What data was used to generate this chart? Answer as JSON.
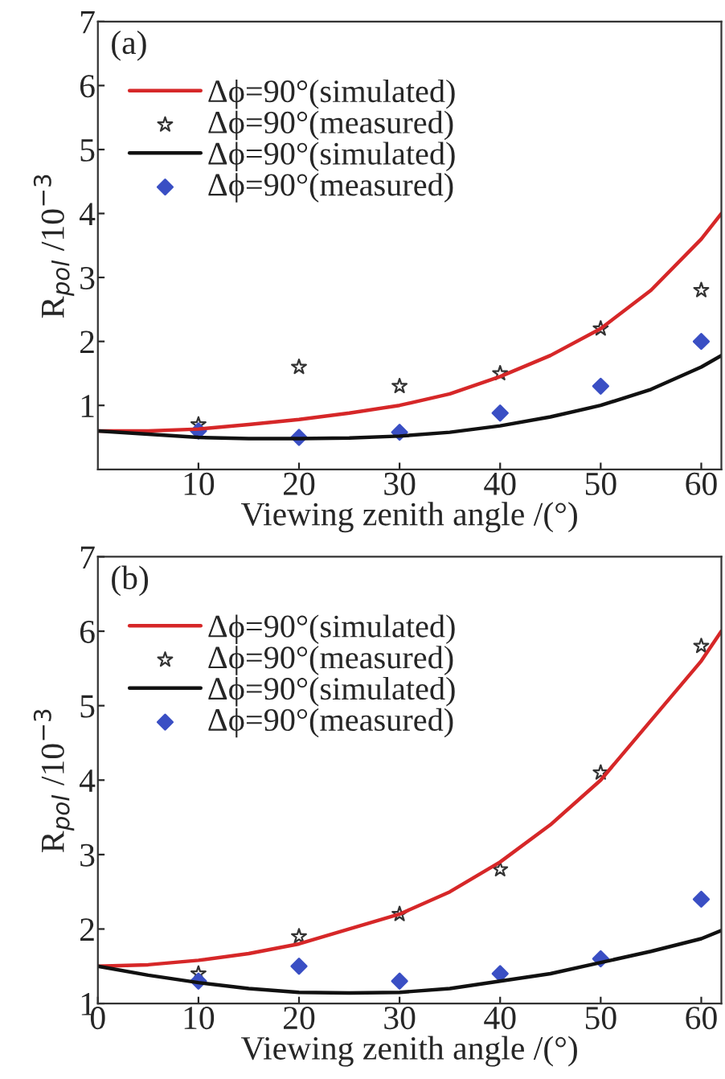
{
  "chart_data": [
    {
      "type": "line",
      "xlabel": "Viewing zenith angle /(°)",
      "ylabel": "R$_{pol}$ /10$^{−3}$",
      "annotations": [
        "(a)"
      ],
      "xlim": [
        0,
        62
      ],
      "ylim": [
        0,
        7
      ],
      "xticks": [
        10,
        20,
        30,
        40,
        50,
        60
      ],
      "yticks": [
        1,
        2,
        3,
        4,
        5,
        6,
        7
      ],
      "legend": "top left",
      "grid": false,
      "series": [
        {
          "name": "Δϕ=90°(simulated)",
          "color": "#d62728",
          "marker": "none",
          "x": [
            0,
            5,
            10,
            15,
            20,
            25,
            30,
            35,
            40,
            45,
            50,
            55,
            60,
            62
          ],
          "values": [
            0.6,
            0.6,
            0.63,
            0.7,
            0.78,
            0.88,
            1.0,
            1.18,
            1.45,
            1.78,
            2.2,
            2.8,
            3.6,
            4.0
          ]
        },
        {
          "name": "Δϕ=90°(measured)",
          "type": "scatter",
          "color": "#333333",
          "marker": "star",
          "x": [
            10,
            20,
            30,
            40,
            50,
            60
          ],
          "values": [
            0.7,
            1.6,
            1.3,
            1.5,
            2.2,
            2.8
          ]
        },
        {
          "name": "Δϕ=90°(simulated)",
          "color": "#111111",
          "marker": "none",
          "x": [
            0,
            5,
            10,
            15,
            20,
            25,
            30,
            35,
            40,
            45,
            50,
            55,
            60,
            62
          ],
          "values": [
            0.6,
            0.55,
            0.5,
            0.48,
            0.48,
            0.49,
            0.52,
            0.58,
            0.68,
            0.82,
            1.0,
            1.25,
            1.6,
            1.78
          ]
        },
        {
          "name": "Δϕ=90°(measured)",
          "type": "scatter",
          "color": "#3a4fc4",
          "marker": "diamond",
          "x": [
            10,
            20,
            30,
            40,
            50,
            60
          ],
          "values": [
            0.6,
            0.5,
            0.58,
            0.88,
            1.3,
            2.0
          ]
        }
      ]
    },
    {
      "type": "line",
      "xlabel": "Viewing zenith angle /(°)",
      "ylabel": "R$_{pol}$ /10$^{−3}$",
      "annotations": [
        "(b)"
      ],
      "xlim": [
        0,
        62
      ],
      "ylim": [
        1,
        7
      ],
      "xticks": [
        0,
        10,
        20,
        30,
        40,
        50,
        60
      ],
      "yticks": [
        1,
        2,
        3,
        4,
        5,
        6,
        7
      ],
      "legend": "top left",
      "grid": false,
      "series": [
        {
          "name": "Δϕ=90°(simulated)",
          "color": "#d62728",
          "marker": "none",
          "x": [
            0,
            5,
            10,
            15,
            20,
            25,
            30,
            35,
            40,
            45,
            50,
            55,
            60,
            62
          ],
          "values": [
            1.5,
            1.52,
            1.58,
            1.67,
            1.8,
            2.0,
            2.2,
            2.5,
            2.9,
            3.4,
            4.0,
            4.8,
            5.6,
            6.0
          ]
        },
        {
          "name": "Δϕ=90°(measured)",
          "type": "scatter",
          "color": "#333333",
          "marker": "star",
          "x": [
            10,
            20,
            30,
            40,
            50,
            60
          ],
          "values": [
            1.4,
            1.9,
            2.2,
            2.8,
            4.1,
            5.8
          ]
        },
        {
          "name": "Δϕ=90°(simulated)",
          "color": "#111111",
          "marker": "none",
          "x": [
            0,
            5,
            10,
            15,
            20,
            25,
            30,
            35,
            40,
            45,
            50,
            55,
            60,
            62
          ],
          "values": [
            1.5,
            1.38,
            1.28,
            1.2,
            1.15,
            1.14,
            1.15,
            1.2,
            1.3,
            1.4,
            1.55,
            1.7,
            1.87,
            1.98
          ]
        },
        {
          "name": "Δϕ=90°(measured)",
          "type": "scatter",
          "color": "#3a4fc4",
          "marker": "diamond",
          "x": [
            10,
            20,
            30,
            40,
            50,
            60
          ],
          "values": [
            1.3,
            1.5,
            1.3,
            1.4,
            1.6,
            2.4
          ]
        }
      ]
    }
  ]
}
